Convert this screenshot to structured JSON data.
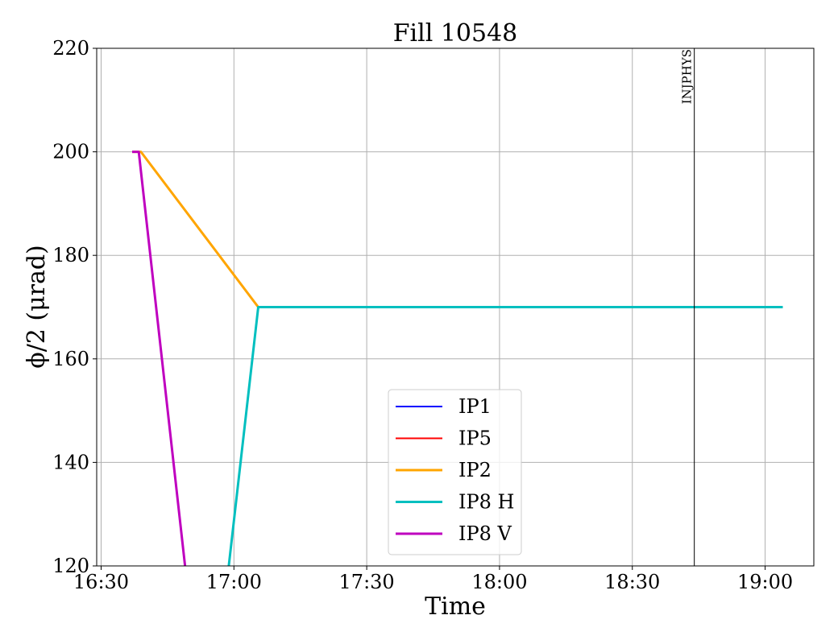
{
  "chart_data": {
    "type": "line",
    "title": "Fill 10548",
    "xlabel": "Time",
    "ylabel": "ϕ/2 (μrad)",
    "xlim": [
      "16:29",
      "19:11"
    ],
    "ylim": [
      120,
      220
    ],
    "xticks": [
      "16:30",
      "17:00",
      "17:30",
      "18:00",
      "18:30",
      "19:00"
    ],
    "yticks": [
      120,
      140,
      160,
      180,
      200,
      220
    ],
    "grid": true,
    "legend_position": "lower-center",
    "series": [
      {
        "name": "IP1",
        "color": "#0000ff",
        "points": []
      },
      {
        "name": "IP5",
        "color": "#ff0000",
        "points": []
      },
      {
        "name": "IP2",
        "color": "#ffa500",
        "points": [
          [
            "16:37",
            200
          ],
          [
            "16:39",
            200
          ],
          [
            "17:05.5",
            170
          ],
          [
            "19:04",
            170
          ]
        ]
      },
      {
        "name": "IP8 H",
        "color": "#00bfbf",
        "points": [
          [
            "16:57.5",
            110
          ],
          [
            "17:05.5",
            170
          ],
          [
            "19:04",
            170
          ]
        ]
      },
      {
        "name": "IP8 V",
        "color": "#bf00bf",
        "points": [
          [
            "16:37",
            200
          ],
          [
            "16:38.5",
            200
          ],
          [
            "16:50",
            112
          ]
        ]
      }
    ],
    "annotations": [
      {
        "type": "vline",
        "x": "18:44",
        "label": "INJPHYS"
      }
    ]
  }
}
